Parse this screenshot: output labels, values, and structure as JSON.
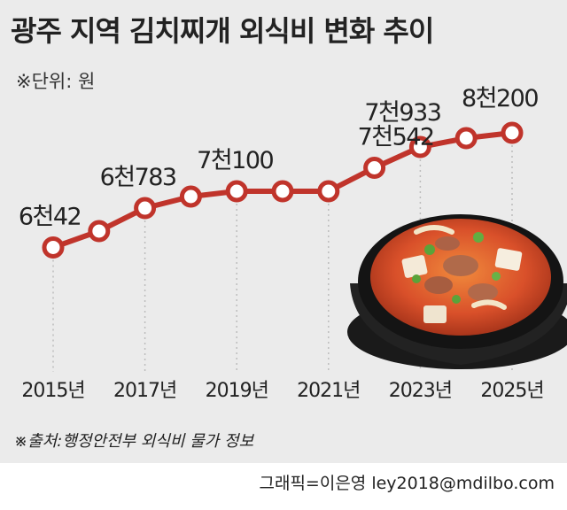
{
  "title": "광주 지역 김치찌개 외식비 변화 추이",
  "unit_note": "※단위: 원",
  "source": "※출처:행정안전부 외식비 물가 정보",
  "credit": "그래픽=이은영 ley2018@mdilbo.com",
  "colors": {
    "line": "#c0342b",
    "marker_fill": "#ffffff",
    "background": "#ebebeb",
    "grid": "#bdbdbd",
    "text": "#222222"
  },
  "chart_data": {
    "type": "line",
    "title": "광주 지역 김치찌개 외식비 변화 추이",
    "xlabel": "",
    "ylabel": "",
    "x": [
      "2015",
      "2016",
      "2017",
      "2018",
      "2019",
      "2020",
      "2021",
      "2022",
      "2023",
      "2024",
      "2025"
    ],
    "values": [
      6042,
      6350,
      6783,
      7000,
      7100,
      7100,
      7100,
      7542,
      7933,
      8100,
      8200
    ],
    "x_tick_labels": [
      "2015년",
      "2017년",
      "2019년",
      "2021년",
      "2023년",
      "2025년"
    ],
    "data_labels": [
      {
        "index": 0,
        "text": "6천42"
      },
      {
        "index": 2,
        "text": "6천783"
      },
      {
        "index": 4,
        "text": "7천100"
      },
      {
        "index": 7,
        "text": "7천542"
      },
      {
        "index": 8,
        "text": "7천933"
      },
      {
        "index": 10,
        "text": "8천200"
      }
    ],
    "ylim": [
      5500,
      8700
    ],
    "grid": "vertical dotted",
    "legend": "none"
  }
}
